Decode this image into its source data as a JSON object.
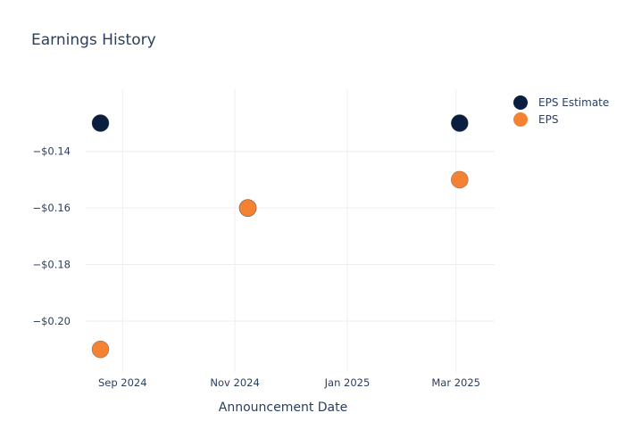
{
  "chart_data": {
    "type": "scatter",
    "title": "Earnings History",
    "xlabel": "Announcement Date",
    "ylabel": "",
    "x_ticks": [
      {
        "date": "2024-09-01",
        "label": "Sep 2024"
      },
      {
        "date": "2024-11-01",
        "label": "Nov 2024"
      },
      {
        "date": "2025-01-01",
        "label": "Jan 2025"
      },
      {
        "date": "2025-03-01",
        "label": "Mar 2025"
      }
    ],
    "y_ticks": [
      {
        "value": -0.14,
        "label": "−$0.14"
      },
      {
        "value": -0.16,
        "label": "−$0.16"
      },
      {
        "value": -0.18,
        "label": "−$0.18"
      },
      {
        "value": -0.2,
        "label": "−$0.20"
      }
    ],
    "xlim": [
      "2024-08-12",
      "2025-03-22"
    ],
    "ylim": [
      -0.218,
      -0.118
    ],
    "grid": true,
    "legend_position": "top-right",
    "series": [
      {
        "name": "EPS Estimate",
        "color": "#0a1f3f",
        "points": [
          {
            "x": "2024-08-20",
            "y": -0.13
          },
          {
            "x": "2024-11-08",
            "y": -0.16
          },
          {
            "x": "2025-03-03",
            "y": -0.13
          }
        ]
      },
      {
        "name": "EPS",
        "color": "#f58233",
        "points": [
          {
            "x": "2024-08-20",
            "y": -0.21
          },
          {
            "x": "2024-11-08",
            "y": -0.16
          },
          {
            "x": "2025-03-03",
            "y": -0.15
          }
        ]
      }
    ]
  }
}
